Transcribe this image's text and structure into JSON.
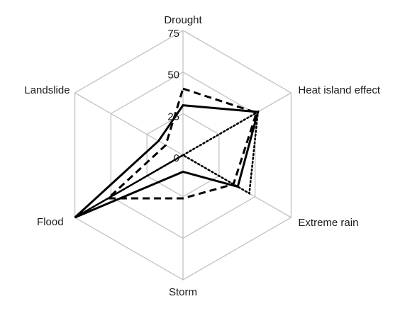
{
  "chart_data": {
    "type": "radar",
    "title": "",
    "axes": [
      "Drought",
      "Heat island effect",
      "Extreme rain",
      "Storm",
      "Flood",
      "Landslide"
    ],
    "r_ticks": [
      "0",
      "25",
      "50",
      "75"
    ],
    "r_range": [
      0,
      75
    ],
    "grid": true,
    "legend": "none",
    "series": [
      {
        "values": [
          30,
          52,
          38,
          10,
          75,
          17
        ],
        "line_style": "solid",
        "color": "#000000"
      },
      {
        "values": [
          40,
          51,
          35,
          26,
          52,
          12
        ],
        "line_style": "dashed",
        "color": "#000000"
      },
      {
        "values": [
          0,
          52,
          46,
          0,
          75,
          0
        ],
        "line_style": "dotted",
        "color": "#000000"
      }
    ]
  }
}
